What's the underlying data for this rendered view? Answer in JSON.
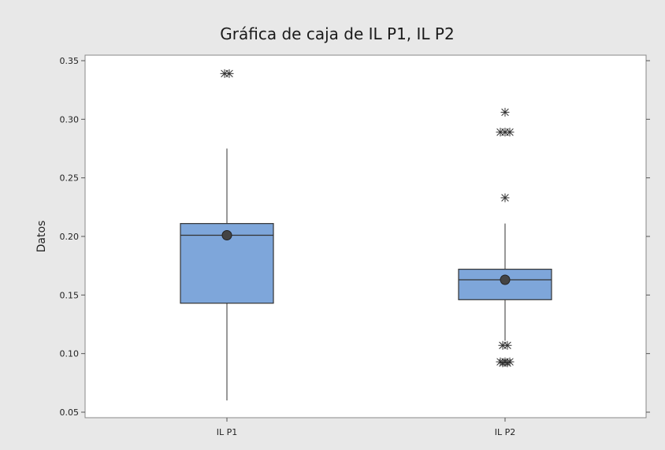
{
  "chart_data": {
    "type": "box",
    "title": "Gráfica de caja de IL P1, IL P2",
    "xlabel": "",
    "ylabel": "Datos",
    "ylim": [
      0.05,
      0.35
    ],
    "yticks": [
      "0.05",
      "0.10",
      "0.15",
      "0.20",
      "0.25",
      "0.30",
      "0.35"
    ],
    "categories": [
      "IL P1",
      "IL P2"
    ],
    "grid": false,
    "colors": {
      "box_fill": "#7ea6da",
      "box_stroke": "#333333",
      "background": "#e8e8e8",
      "plot_area": "#ffffff"
    },
    "boxes": [
      {
        "category": "IL P1",
        "whisker_low": 0.06,
        "q1": 0.143,
        "median": 0.201,
        "q3": 0.211,
        "whisker_high": 0.275,
        "mean": 0.201,
        "outliers": [
          0.339,
          0.339
        ]
      },
      {
        "category": "IL P2",
        "whisker_low": 0.111,
        "q1": 0.146,
        "median": 0.163,
        "q3": 0.172,
        "whisker_high": 0.211,
        "mean": 0.163,
        "outliers": [
          0.306,
          0.289,
          0.289,
          0.289,
          0.233,
          0.107,
          0.107,
          0.093,
          0.093,
          0.093,
          0.092,
          0.092
        ]
      }
    ]
  }
}
